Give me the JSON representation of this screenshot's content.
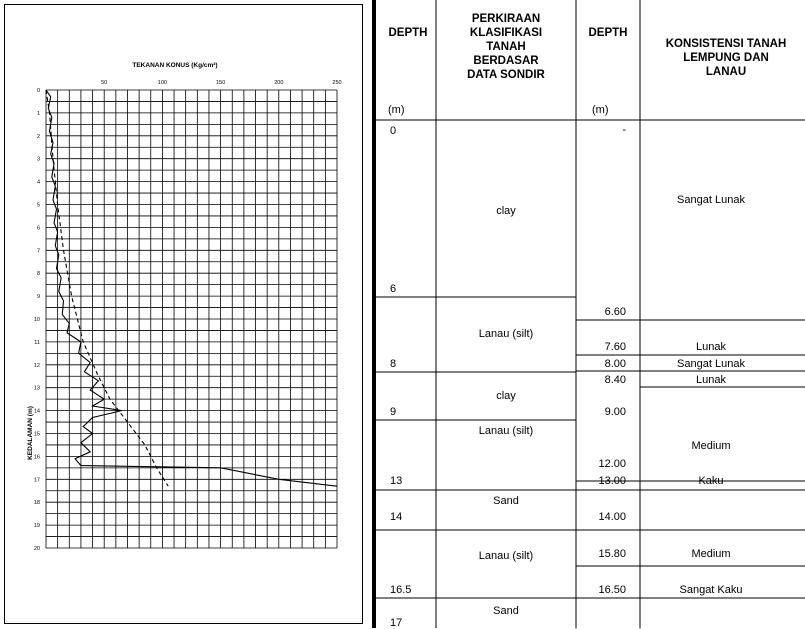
{
  "chart_data": {
    "type": "line",
    "title": "TEKANAN KONUS (Kg/cm²)",
    "ylabel": "KEDALAMAN (m)",
    "x_ticks": [
      50,
      100,
      150,
      200,
      250
    ],
    "y_ticks": [
      0,
      1,
      2,
      3,
      4,
      5,
      6,
      7,
      8,
      9,
      10,
      11,
      12,
      13,
      14,
      15,
      16,
      17,
      18,
      19,
      20
    ],
    "xlim": [
      0,
      250
    ],
    "ylim": [
      0,
      20
    ],
    "grid": true,
    "series": [
      {
        "style": "solid",
        "points": [
          [
            0,
            0
          ],
          [
            4,
            0.3
          ],
          [
            2,
            0.8
          ],
          [
            5,
            1.2
          ],
          [
            3,
            1.8
          ],
          [
            6,
            2.3
          ],
          [
            4,
            2.8
          ],
          [
            7,
            3.2
          ],
          [
            5,
            3.8
          ],
          [
            8,
            4.2
          ],
          [
            6,
            4.8
          ],
          [
            9,
            5.2
          ],
          [
            7,
            5.8
          ],
          [
            10,
            6.2
          ],
          [
            8,
            6.8
          ],
          [
            11,
            7.2
          ],
          [
            9,
            7.8
          ],
          [
            13,
            8.2
          ],
          [
            11,
            8.8
          ],
          [
            15,
            9.2
          ],
          [
            14,
            9.8
          ],
          [
            20,
            10.2
          ],
          [
            18,
            10.6
          ],
          [
            30,
            11.0
          ],
          [
            28,
            11.5
          ],
          [
            38,
            11.9
          ],
          [
            33,
            12.3
          ],
          [
            45,
            12.7
          ],
          [
            38,
            13.1
          ],
          [
            50,
            13.5
          ],
          [
            40,
            13.8
          ],
          [
            65,
            14.0
          ],
          [
            40,
            14.3
          ],
          [
            32,
            14.7
          ],
          [
            40,
            15.0
          ],
          [
            30,
            15.4
          ],
          [
            38,
            15.8
          ],
          [
            25,
            16.1
          ],
          [
            30,
            16.4
          ],
          [
            150,
            16.5
          ],
          [
            200,
            17.0
          ],
          [
            250,
            17.3
          ]
        ]
      },
      {
        "style": "dashed",
        "points": [
          [
            0,
            0
          ],
          [
            3,
            1
          ],
          [
            6,
            3
          ],
          [
            10,
            5
          ],
          [
            15,
            7
          ],
          [
            22,
            9
          ],
          [
            32,
            11
          ],
          [
            45,
            12.5
          ],
          [
            55,
            13.5
          ],
          [
            70,
            14.5
          ],
          [
            85,
            15.5
          ],
          [
            95,
            16.5
          ],
          [
            105,
            17.3
          ]
        ]
      }
    ]
  },
  "table": {
    "headers": {
      "depth1": "DEPTH",
      "unit1": "(m)",
      "klasifikasi_lines": [
        "PERKIRAAN",
        "KLASIFIKASI",
        "TANAH",
        "BERDASAR",
        "DATA SONDIR"
      ],
      "depth2": "DEPTH",
      "unit2": "(m)",
      "konsistensi_lines": [
        "KONSISTENSI TANAH",
        "LEMPUNG DAN",
        "LANAU"
      ]
    },
    "depth1": [
      "0",
      "6",
      "8",
      "9",
      "13",
      "14",
      "16.5",
      "17"
    ],
    "klasifikasi": [
      "clay",
      "Lanau (silt)",
      "clay",
      "Lanau (silt)",
      "Sand",
      "Lanau (silt)",
      "Sand"
    ],
    "depth2": [
      "-",
      "6.60",
      "7.60",
      "8.00",
      "8.40",
      "9.00",
      "12.00",
      "13.00",
      "14.00",
      "15.80",
      "16.50"
    ],
    "konsistensi": [
      "Sangat Lunak",
      "Lunak",
      "Sangat Lunak",
      "Lunak",
      "Medium",
      "Kaku",
      "Medium",
      "Sangat Kaku"
    ]
  }
}
